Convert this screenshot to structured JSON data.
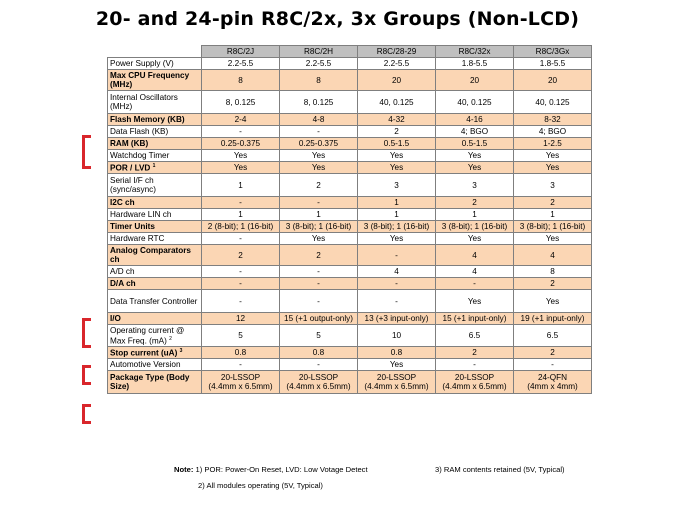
{
  "title": "20- and 24-pin R8C/2x, 3x Groups (Non-LCD)",
  "columns": [
    "R8C/2J",
    "R8C/2H",
    "R8C/28-29",
    "R8C/32x",
    "R8C/3Gx"
  ],
  "rows": [
    {
      "label": "Power Supply (V)",
      "values": [
        "2.2-5.5",
        "2.2-5.5",
        "2.2-5.5",
        "1.8-5.5",
        "1.8-5.5"
      ]
    },
    {
      "label": "Max CPU Frequency (MHz)",
      "values": [
        "8",
        "8",
        "20",
        "20",
        "20"
      ]
    },
    {
      "label": "Internal Oscillators (MHz)",
      "values": [
        "8, 0.125",
        "8, 0.125",
        "40, 0.125",
        "40, 0.125",
        "40, 0.125"
      ]
    },
    {
      "label": "Flash Memory (KB)",
      "values": [
        "2-4",
        "4-8",
        "4-32",
        "4-16",
        "8-32"
      ]
    },
    {
      "label": "Data Flash (KB)",
      "values": [
        "-",
        "-",
        "2",
        "4; BGO",
        "4; BGO"
      ]
    },
    {
      "label": "RAM (KB)",
      "values": [
        "0.25-0.375",
        "0.25-0.375",
        "0.5-1.5",
        "0.5-1.5",
        "1-2.5"
      ]
    },
    {
      "label": "Watchdog Timer",
      "values": [
        "Yes",
        "Yes",
        "Yes",
        "Yes",
        "Yes"
      ]
    },
    {
      "label": "POR / LVD",
      "sup": "1",
      "values": [
        "Yes",
        "Yes",
        "Yes",
        "Yes",
        "Yes"
      ]
    },
    {
      "label": "Serial I/F ch (sync/async)",
      "values": [
        "1",
        "2",
        "3",
        "3",
        "3"
      ]
    },
    {
      "label": "I2C ch",
      "values": [
        "-",
        "-",
        "1",
        "2",
        "2"
      ]
    },
    {
      "label": "Hardware LIN ch",
      "values": [
        "1",
        "1",
        "1",
        "1",
        "1"
      ]
    },
    {
      "label": "Timer Units",
      "values": [
        "2 (8-bit); 1 (16-bit)",
        "3 (8-bit); 1 (16-bit)",
        "3 (8-bit); 1 (16-bit)",
        "3 (8-bit); 1 (16-bit)",
        "3 (8-bit); 1 (16-bit)"
      ]
    },
    {
      "label": "Hardware RTC",
      "values": [
        "-",
        "Yes",
        "Yes",
        "Yes",
        "Yes"
      ]
    },
    {
      "label": "Analog Comparators ch",
      "values": [
        "2",
        "2",
        "-",
        "4",
        "4"
      ]
    },
    {
      "label": "A/D ch",
      "values": [
        "-",
        "-",
        "4",
        "4",
        "8"
      ]
    },
    {
      "label": "D/A ch",
      "values": [
        "-",
        "-",
        "-",
        "-",
        "2"
      ]
    },
    {
      "label": "Data Transfer Controller",
      "values": [
        "-",
        "-",
        "-",
        "Yes",
        "Yes"
      ]
    },
    {
      "label": "I/O",
      "values": [
        "12",
        "15 (+1 output-only)",
        "13 (+3 input-only)",
        "15 (+1 input-only)",
        "19 (+1 input-only)"
      ]
    },
    {
      "label": "Operating current @ Max Freq. (mA)",
      "sup": "2",
      "values": [
        "5",
        "5",
        "10",
        "6.5",
        "6.5"
      ]
    },
    {
      "label": "Stop current (uA)",
      "sup": "3",
      "values": [
        "0.8",
        "0.8",
        "0.8",
        "2",
        "2"
      ]
    },
    {
      "label": "Automotive Version",
      "values": [
        "-",
        "-",
        "Yes",
        "-",
        "-"
      ]
    },
    {
      "label": "Package Type (Body Size)",
      "values": [
        {
          "line1": "20-LSSOP",
          "line2": "(4.4mm x 6.5mm)"
        },
        {
          "line1": "20-LSSOP",
          "line2": "(4.4mm x 6.5mm)"
        },
        {
          "line1": "20-LSSOP",
          "line2": "(4.4mm x 6.5mm)"
        },
        {
          "line1": "20-LSSOP",
          "line2": "(4.4mm x 6.5mm)"
        },
        {
          "line1": "24-QFN",
          "line2": "(4mm x 4mm)"
        }
      ]
    }
  ],
  "notes": {
    "prefix": "Note:",
    "note1": "1) POR: Power-On Reset, LVD: Low Votage Detect",
    "note2": "2) All modules operating (5V, Typical)",
    "note3": "3) RAM contents retained (5V, Typical)"
  },
  "colors": {
    "shaded_row": "#fbd6b4",
    "header": "#bfbfbf",
    "bracket": "#d9262b"
  }
}
